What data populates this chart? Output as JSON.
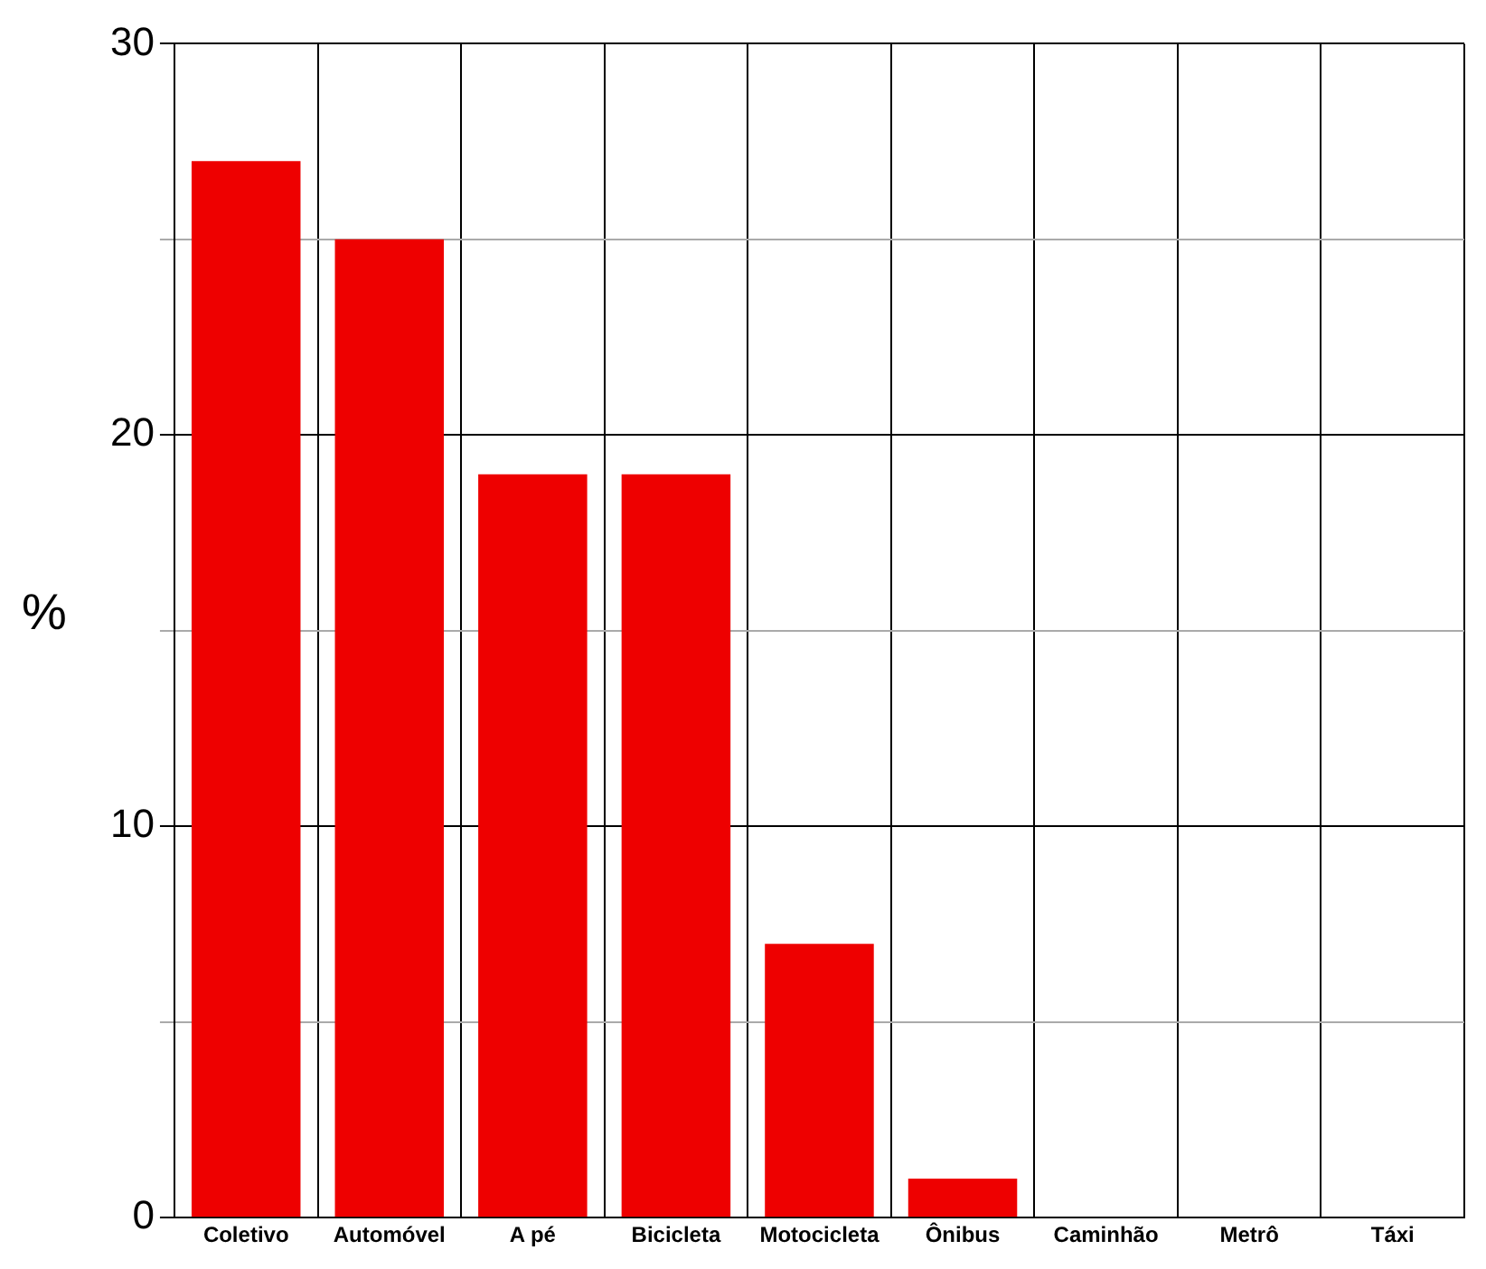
{
  "chart_data": {
    "type": "bar",
    "ylabel": "%",
    "categories": [
      "Coletivo",
      "Automóvel",
      "A pé",
      "Bicicleta",
      "Motocicleta",
      "Ônibus",
      "Caminhão",
      "Metrô",
      "Táxi"
    ],
    "values": [
      27,
      25,
      19,
      19,
      7,
      1,
      0,
      0,
      0
    ],
    "color": "#ee0000",
    "ylim": [
      0,
      30
    ],
    "yticks": [
      0,
      {
        "value": 5,
        "label": null
      },
      10,
      {
        "value": 15,
        "label": null
      },
      20,
      {
        "value": 25,
        "label": null
      },
      30
    ],
    "grid": true,
    "legend": false
  }
}
